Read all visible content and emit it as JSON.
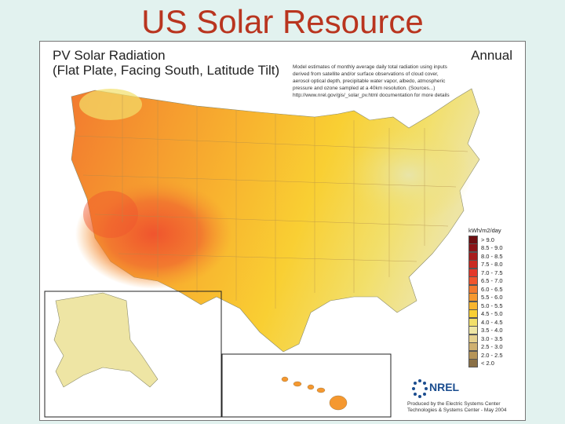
{
  "slide": {
    "title": "US Solar Resource"
  },
  "map": {
    "title_line1": "PV Solar Radiation",
    "title_line2": "(Flat Plate, Facing South, Latitude Tilt)",
    "period": "Annual",
    "description": [
      "Model estimates of monthly average daily total radiation using inputs",
      "derived from satellite and/or surface observations of cloud cover,",
      "aerosol optical depth, precipitable water vapor, albedo, atmospheric",
      "pressure and ozone sampled at a 40km resolution. (Sources...)",
      "http://www.nrel.gov/gis/_solar_pv.html documentation for more details"
    ],
    "legend": {
      "title": "kWh/m2/day",
      "items": [
        {
          "label": "> 9.0",
          "color": "#6e0f12"
        },
        {
          "label": "8.5 - 9.0",
          "color": "#8c1418"
        },
        {
          "label": "8.0 - 8.5",
          "color": "#a81d1d"
        },
        {
          "label": "7.5 - 8.0",
          "color": "#c92a22"
        },
        {
          "label": "7.0 - 7.5",
          "color": "#e3382a"
        },
        {
          "label": "6.5 - 7.0",
          "color": "#f0552e"
        },
        {
          "label": "6.0 - 6.5",
          "color": "#f27a2f"
        },
        {
          "label": "5.5 - 6.0",
          "color": "#f5982f"
        },
        {
          "label": "5.0 - 5.5",
          "color": "#f8b52f"
        },
        {
          "label": "4.5 - 5.0",
          "color": "#f9cf33"
        },
        {
          "label": "4.0 - 4.5",
          "color": "#f2df6a"
        },
        {
          "label": "3.5 - 4.0",
          "color": "#eee5a4"
        },
        {
          "label": "3.0 - 3.5",
          "color": "#e5d08e"
        },
        {
          "label": "2.5 - 3.0",
          "color": "#cfb070"
        },
        {
          "label": "2.0 - 2.5",
          "color": "#b59458"
        },
        {
          "label": "< 2.0",
          "color": "#8a7046"
        }
      ]
    },
    "logo_text": "NREL",
    "credit": [
      "Produced by the Electric Systems Center",
      "Technologies & Systems Center - May 2004"
    ]
  }
}
